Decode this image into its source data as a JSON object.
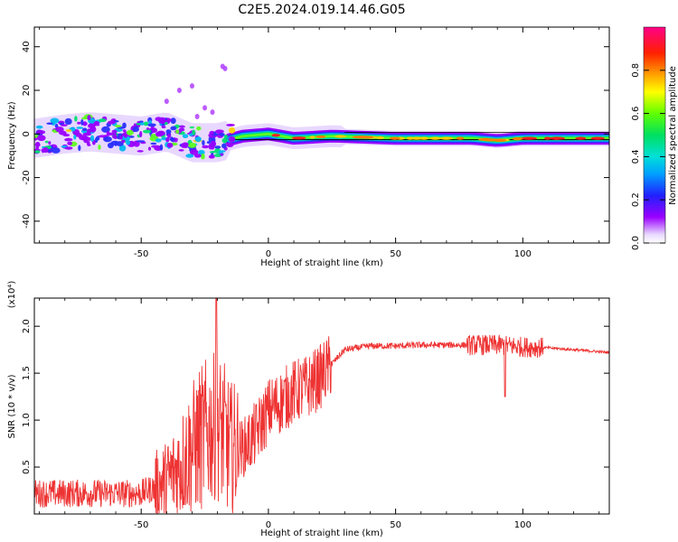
{
  "title": "C2E5.2024.019.14.46.G05",
  "chart_data": [
    {
      "type": "heatmap",
      "xlabel": "Height of straight line (km)",
      "ylabel": "Frequency (Hz)",
      "xlim": [
        -92,
        134
      ],
      "ylim": [
        -50,
        49
      ],
      "x_ticks": [
        -50,
        0,
        50,
        100
      ],
      "y_ticks": [
        -40,
        -20,
        0,
        20,
        40
      ],
      "colorbar": {
        "label": "Normalized spectral amplitude",
        "range": [
          0,
          1
        ],
        "ticks": [
          "0.0",
          "0.2",
          "0.4",
          "0.6",
          "0.8"
        ]
      },
      "ridge": [
        {
          "x": -92,
          "f": -2
        },
        {
          "x": -80,
          "f": 0
        },
        {
          "x": -70,
          "f": 1
        },
        {
          "x": -60,
          "f": 0
        },
        {
          "x": -50,
          "f": -1
        },
        {
          "x": -40,
          "f": 1
        },
        {
          "x": -30,
          "f": -4
        },
        {
          "x": -20,
          "f": -4
        },
        {
          "x": -10,
          "f": -1
        },
        {
          "x": 0,
          "f": 0
        },
        {
          "x": 10,
          "f": -2
        },
        {
          "x": 25,
          "f": -1
        },
        {
          "x": 50,
          "f": -2
        },
        {
          "x": 80,
          "f": -2
        },
        {
          "x": 90,
          "f": -3
        },
        {
          "x": 100,
          "f": -2
        },
        {
          "x": 110,
          "f": -2
        },
        {
          "x": 134,
          "f": -2
        }
      ]
    },
    {
      "type": "line",
      "xlabel": "Height of straight line (km)",
      "ylabel": "SNR (10 * v/v)",
      "y_multiplier": "(x10⁴)",
      "xlim": [
        -92,
        134
      ],
      "ylim": [
        0,
        2.3
      ],
      "x_ticks": [
        -50,
        0,
        50,
        100
      ],
      "y_ticks": [
        "0.5",
        "1.0",
        "1.5",
        "2.0"
      ],
      "color": "#ee3333",
      "envelope": [
        {
          "x": -92,
          "y": 0.22
        },
        {
          "x": -80,
          "y": 0.22
        },
        {
          "x": -70,
          "y": 0.22
        },
        {
          "x": -60,
          "y": 0.22
        },
        {
          "x": -50,
          "y": 0.22
        },
        {
          "x": -45,
          "y": 0.28
        },
        {
          "x": -40,
          "y": 0.35
        },
        {
          "x": -35,
          "y": 0.5
        },
        {
          "x": -30,
          "y": 0.7
        },
        {
          "x": -25,
          "y": 0.85
        },
        {
          "x": -20,
          "y": 0.95
        },
        {
          "x": -15,
          "y": 0.7
        },
        {
          "x": -10,
          "y": 0.7
        },
        {
          "x": -5,
          "y": 0.85
        },
        {
          "x": 0,
          "y": 1.1
        },
        {
          "x": 5,
          "y": 1.2
        },
        {
          "x": 10,
          "y": 1.3
        },
        {
          "x": 15,
          "y": 1.35
        },
        {
          "x": 20,
          "y": 1.45
        },
        {
          "x": 25,
          "y": 1.6
        },
        {
          "x": 30,
          "y": 1.75
        },
        {
          "x": 40,
          "y": 1.79
        },
        {
          "x": 50,
          "y": 1.79
        },
        {
          "x": 60,
          "y": 1.8
        },
        {
          "x": 70,
          "y": 1.8
        },
        {
          "x": 80,
          "y": 1.8
        },
        {
          "x": 90,
          "y": 1.8
        },
        {
          "x": 100,
          "y": 1.78
        },
        {
          "x": 110,
          "y": 1.77
        },
        {
          "x": 120,
          "y": 1.75
        },
        {
          "x": 134,
          "y": 1.72
        }
      ]
    }
  ]
}
